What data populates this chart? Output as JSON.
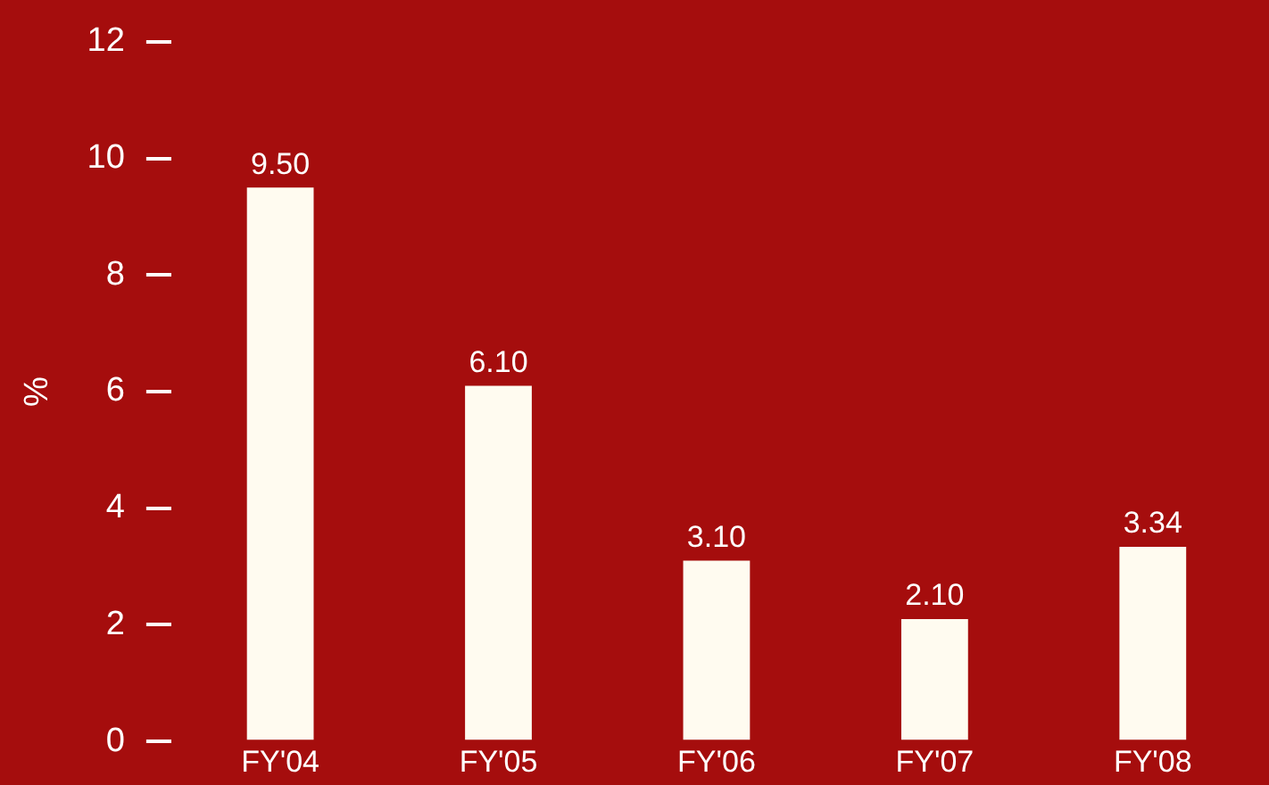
{
  "chart_data": {
    "type": "bar",
    "ylabel": "%",
    "categories": [
      "FY'04",
      "FY'05",
      "FY'06",
      "FY'07",
      "FY'08"
    ],
    "values": [
      9.5,
      6.1,
      3.1,
      2.1,
      3.34
    ],
    "color": "#fffbf0",
    "value_labels": [
      "9.50",
      "6.10",
      "3.10",
      "2.10",
      "3.34"
    ],
    "ylim": [
      0,
      12
    ],
    "yticks": [
      0,
      2,
      4,
      6,
      8,
      10,
      12
    ],
    "grid": false,
    "legend": false
  }
}
